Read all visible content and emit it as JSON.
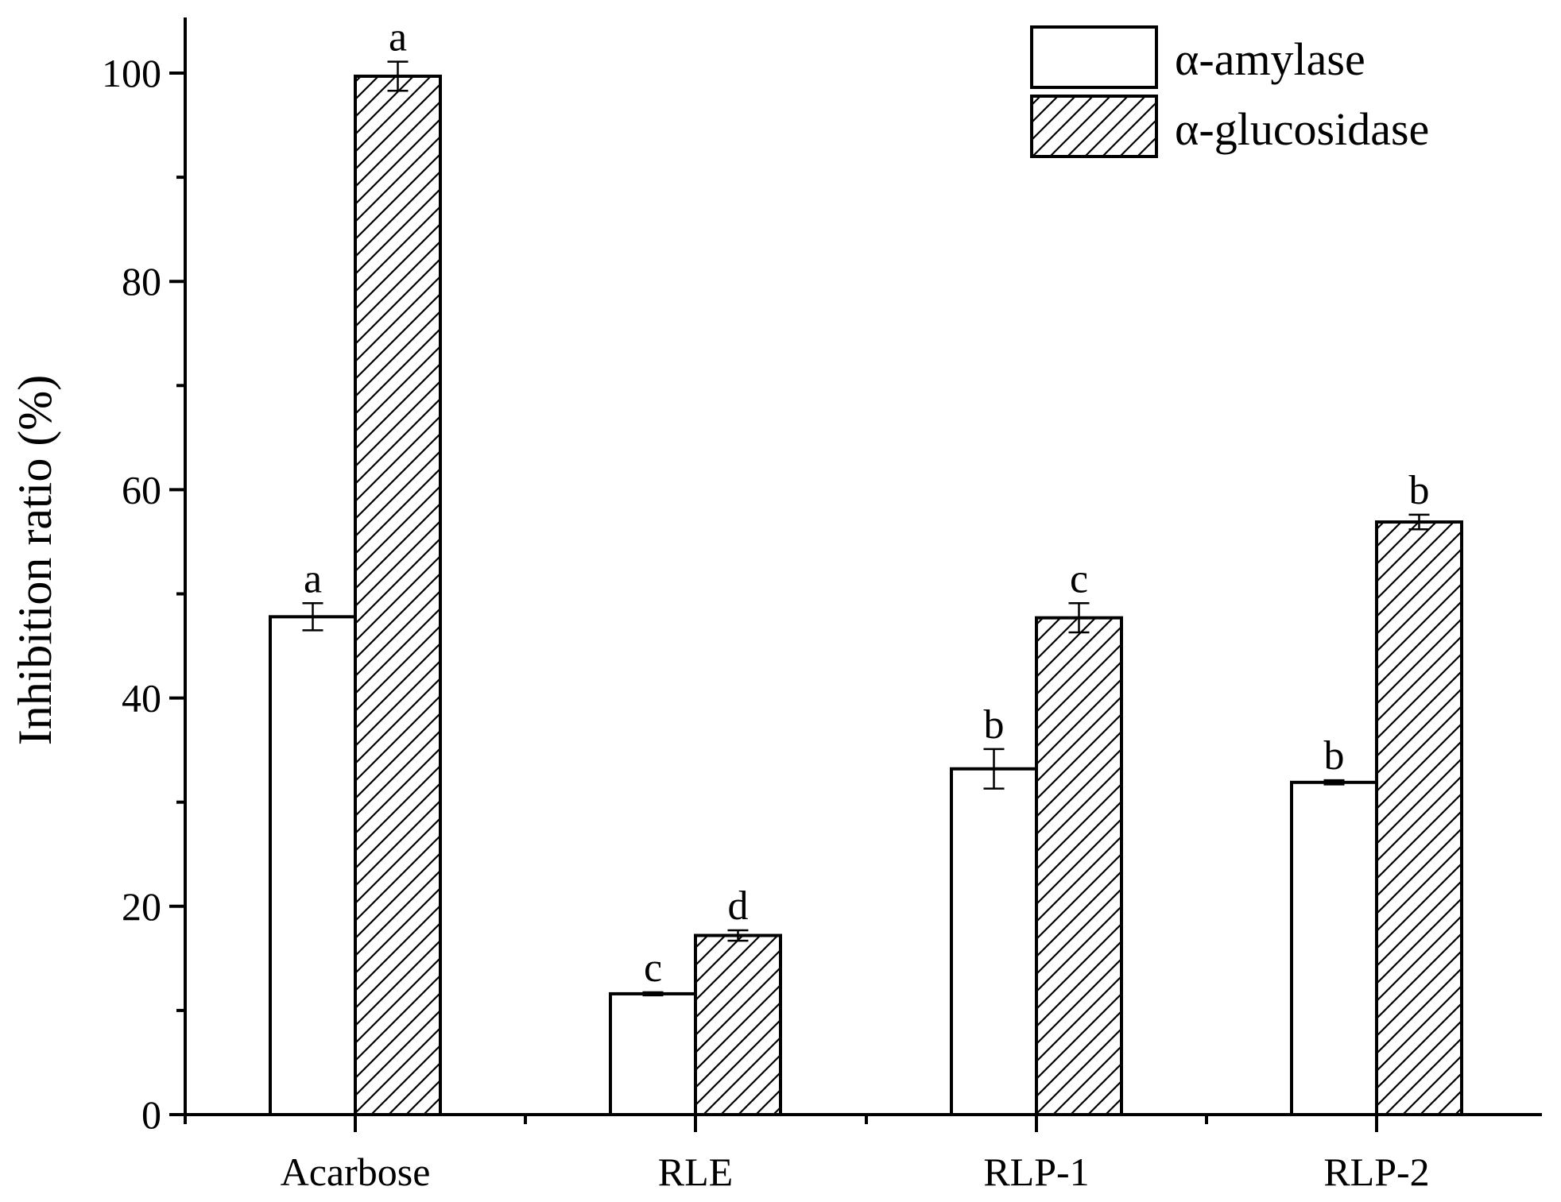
{
  "chart_data": {
    "type": "bar",
    "title": "",
    "xlabel": "",
    "ylabel": "Inhibition ratio (%)",
    "ylim": [
      0,
      105
    ],
    "y_ticks": [
      "0",
      "20",
      "40",
      "60",
      "80",
      "100"
    ],
    "y_tick_values": [
      0,
      20,
      40,
      60,
      80,
      100
    ],
    "y_minor_tick_values": [
      10,
      30,
      50,
      70,
      90
    ],
    "categories": [
      "Acarbose",
      "RLE",
      "RLP-1",
      "RLP-2"
    ],
    "series": [
      {
        "name": "α-amylase",
        "pattern": "open",
        "values": [
          47.8,
          11.6,
          33.2,
          31.9
        ],
        "errors": [
          1.3,
          0.15,
          1.9,
          0.2
        ],
        "letters": [
          "a",
          "c",
          "b",
          "b"
        ]
      },
      {
        "name": "α-glucosidase",
        "pattern": "hatched",
        "values": [
          99.7,
          17.2,
          47.7,
          56.9
        ],
        "errors": [
          1.4,
          0.5,
          1.4,
          0.7
        ],
        "letters": [
          "a",
          "d",
          "c",
          "b"
        ]
      }
    ],
    "legend_position": "top-right",
    "grid": false
  },
  "colors": {
    "axis": "#000000",
    "bar_fill": "#ffffff",
    "bar_stroke": "#000000",
    "hatch": "#000000"
  }
}
